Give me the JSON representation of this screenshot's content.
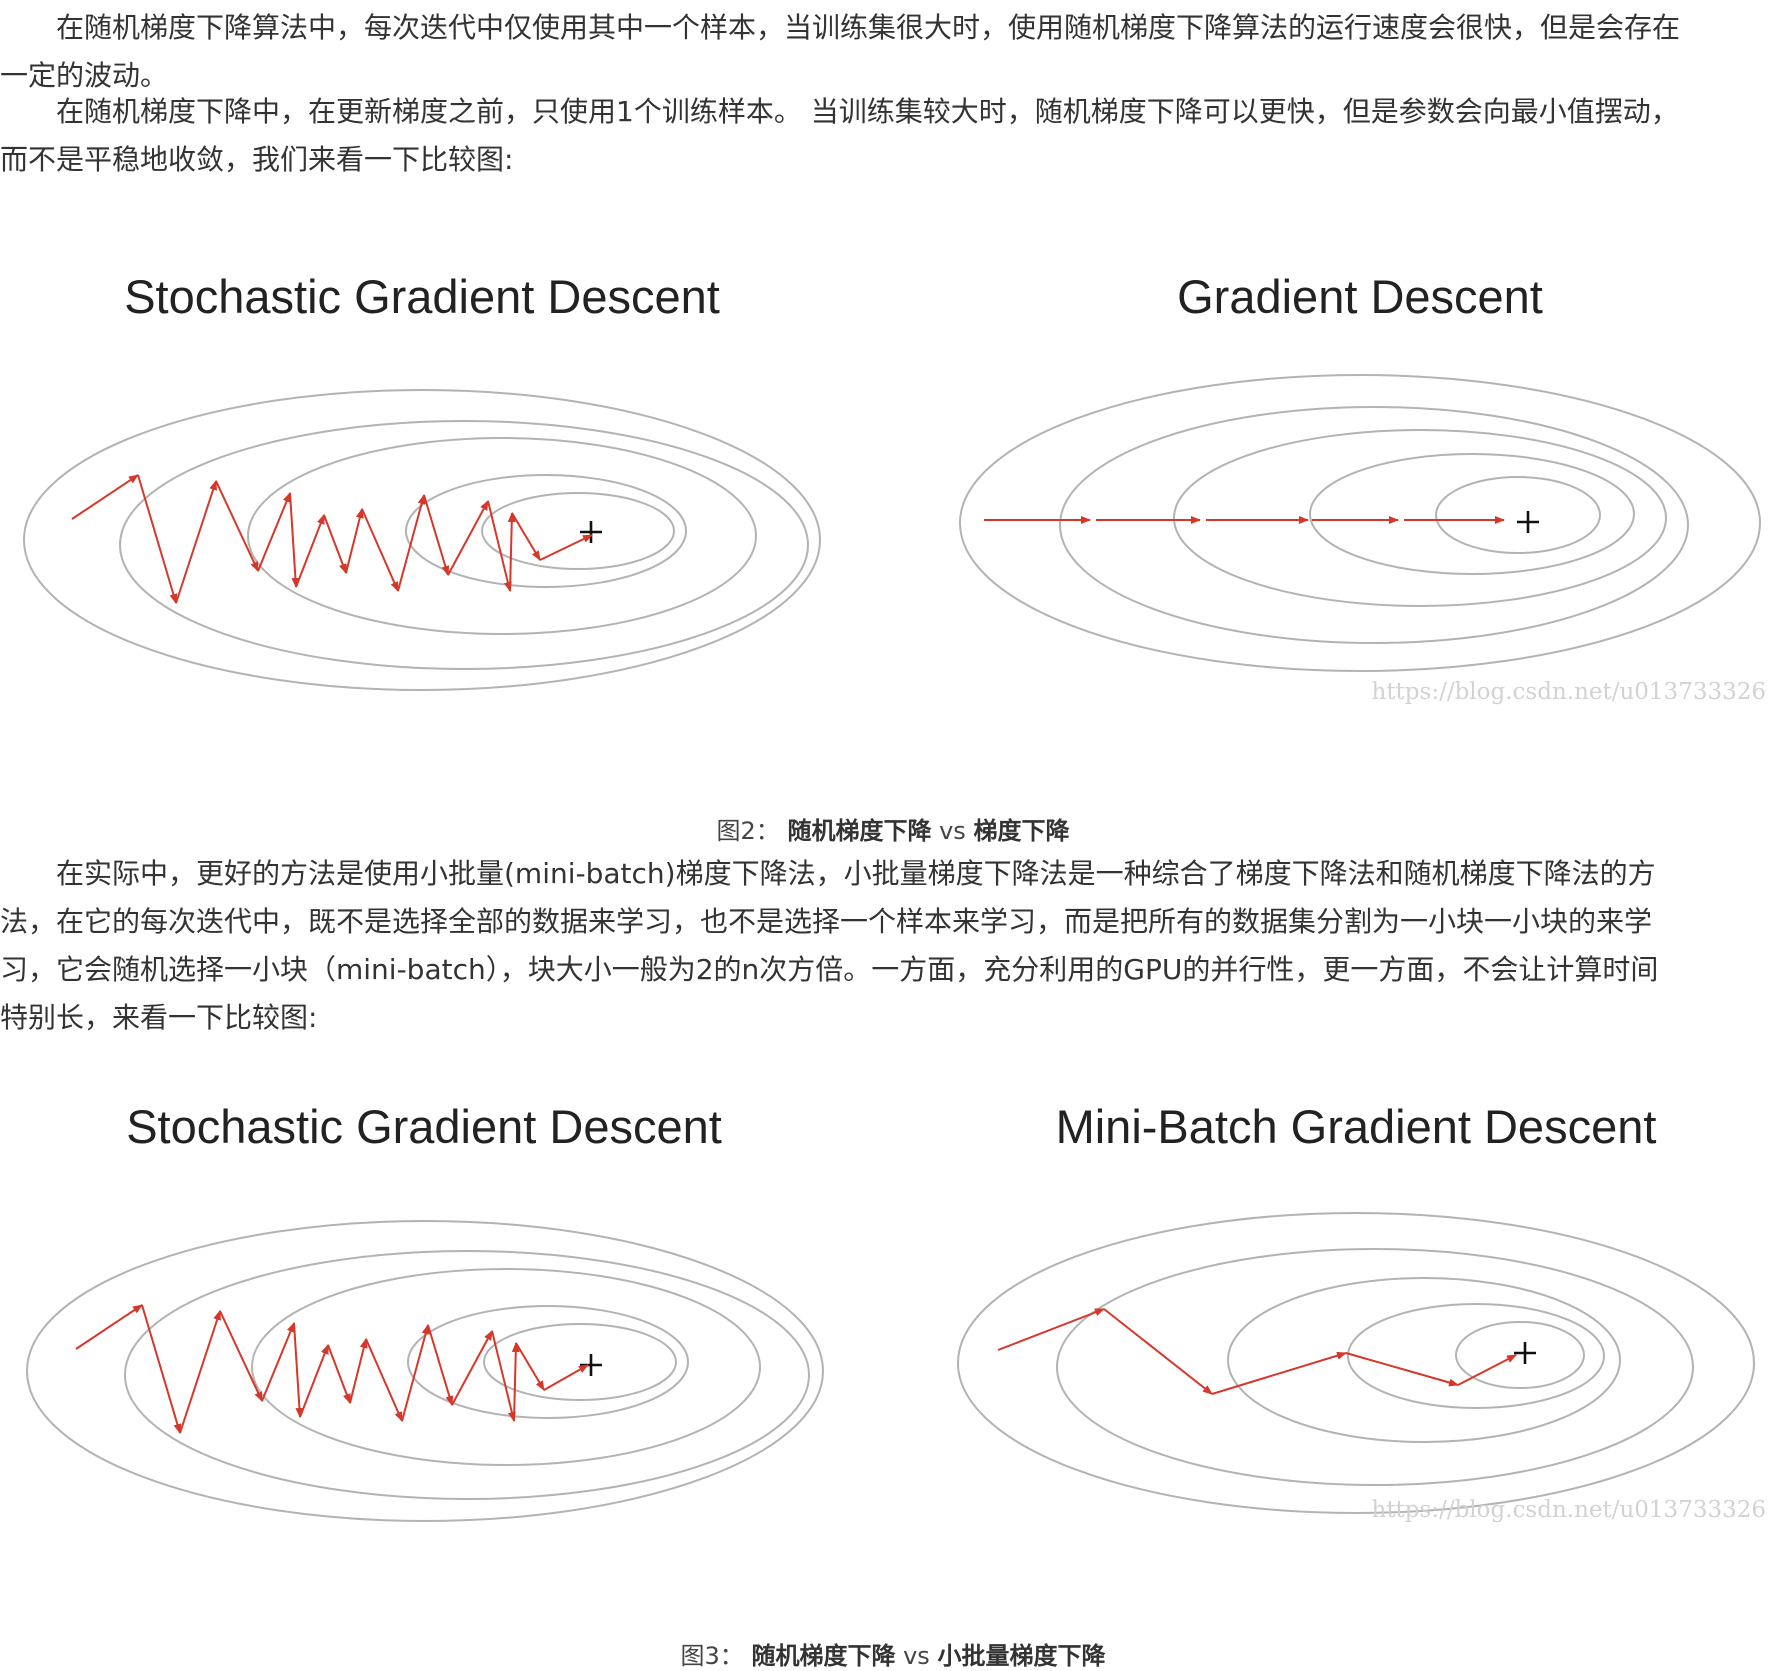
{
  "paragraph1": {
    "lines": [
      "　　在随机梯度下降算法中，每次迭代中仅使用其中一个样本，当训练集很大时，使用随机梯度下降算法的运行速度会很快，但是会存在",
      "一定的波动。"
    ]
  },
  "paragraph2": {
    "lines": [
      "　　在随机梯度下降中，在更新梯度之前，只使用1个训练样本。 当训练集较大时，随机梯度下降可以更快，但是参数会向最小值摆动，",
      "而不是平稳地收敛，我们来看一下比较图:"
    ]
  },
  "figure2": {
    "left_title": "Stochastic Gradient Descent",
    "right_title": "Gradient Descent",
    "watermark": "https://blog.csdn.net/u013733326",
    "caption": {
      "prefix": "图2：",
      "left": "随机梯度下降",
      "vs": "vs",
      "right": "梯度下降"
    }
  },
  "paragraph3": {
    "lines": [
      "　　在实际中，更好的方法是使用小批量(mini-batch)梯度下降法，小批量梯度下降法是一种综合了梯度下降法和随机梯度下降法的方",
      "法，在它的每次迭代中，既不是选择全部的数据来学习，也不是选择一个样本来学习，而是把所有的数据集分割为一小块一小块的来学",
      "习，它会随机选择一小块（mini-batch），块大小一般为2的n次方倍。一方面，充分利用的GPU的并行性，更一方面，不会让计算时间",
      "特别长，来看一下比较图:"
    ]
  },
  "figure3": {
    "left_title": "Stochastic Gradient Descent",
    "right_title": "Mini-Batch Gradient Descent",
    "watermark": "https://blog.csdn.net/u013733326",
    "caption": {
      "prefix": "图3：",
      "left": "随机梯度下降",
      "vs": "vs",
      "right": "小批量梯度下降"
    }
  },
  "colors": {
    "text": "#333333",
    "contour": "#b3b3b3",
    "path": "#d5382b",
    "minimum_marker": "#111111",
    "watermark": "#d2d2d2"
  },
  "icons": {
    "minimum_marker": "plus-icon",
    "step_arrow": "arrow-icon"
  }
}
